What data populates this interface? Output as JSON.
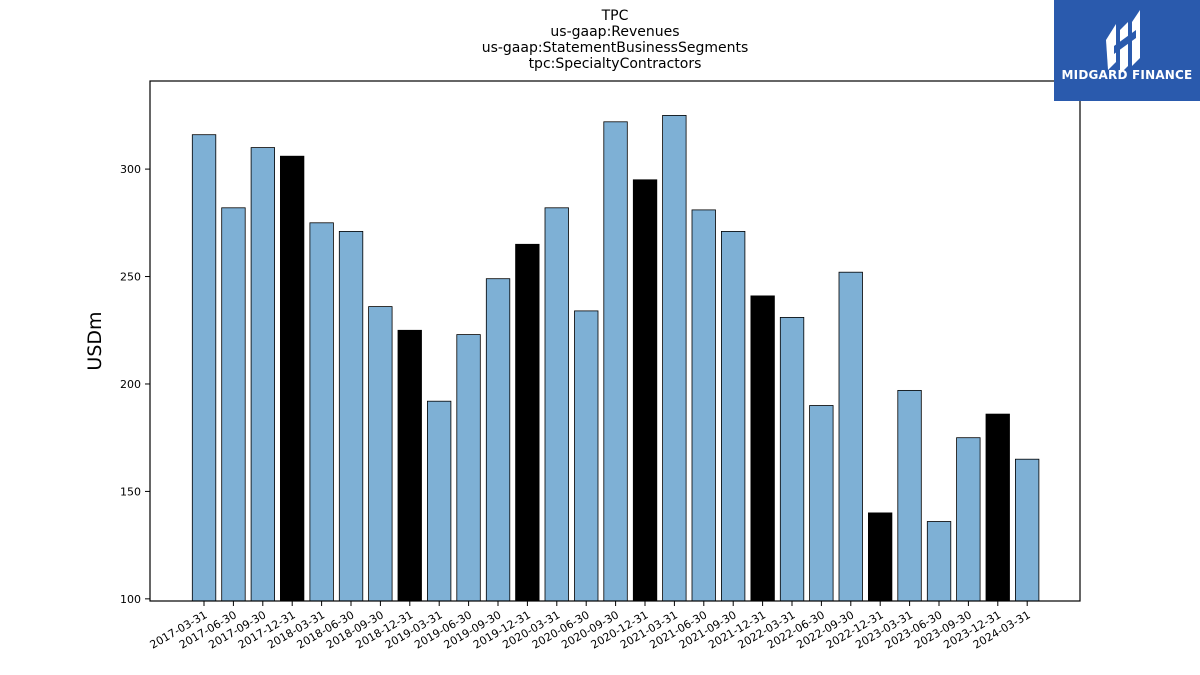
{
  "chart_data": {
    "type": "bar",
    "title_lines": [
      "TPC",
      "us-gaap:Revenues",
      "us-gaap:StatementBusinessSegments",
      "tpc:SpecialtyContractors"
    ],
    "ylabel": "USDm",
    "ylim": [
      99,
      341
    ],
    "yticks": [
      100,
      150,
      200,
      250,
      300
    ],
    "categories": [
      "2017-03-31",
      "2017-06-30",
      "2017-09-30",
      "2017-12-31",
      "2018-03-31",
      "2018-06-30",
      "2018-09-30",
      "2018-12-31",
      "2019-03-31",
      "2019-06-30",
      "2019-09-30",
      "2019-12-31",
      "2020-03-31",
      "2020-06-30",
      "2020-09-30",
      "2020-12-31",
      "2021-03-31",
      "2021-06-30",
      "2021-09-30",
      "2021-12-31",
      "2022-03-31",
      "2022-06-30",
      "2022-09-30",
      "2022-12-31",
      "2023-03-31",
      "2023-06-30",
      "2023-09-30",
      "2023-12-31",
      "2024-03-31"
    ],
    "values": [
      316,
      282,
      310,
      306,
      275,
      271,
      236,
      225,
      192,
      223,
      249,
      265,
      282,
      234,
      322,
      295,
      325,
      281,
      271,
      241,
      231,
      190,
      252,
      140,
      197,
      136,
      175,
      186,
      165
    ],
    "highlight": [
      false,
      false,
      false,
      true,
      false,
      false,
      false,
      true,
      false,
      false,
      false,
      true,
      false,
      false,
      false,
      true,
      false,
      false,
      false,
      true,
      false,
      false,
      false,
      true,
      false,
      false,
      false,
      true,
      false
    ],
    "colors": {
      "bar": "#7eb0d5",
      "highlight": "#000000",
      "edge": "#000000"
    }
  },
  "logo": {
    "text": "MIDGARD FINANCE",
    "background": "#2a5aad"
  }
}
